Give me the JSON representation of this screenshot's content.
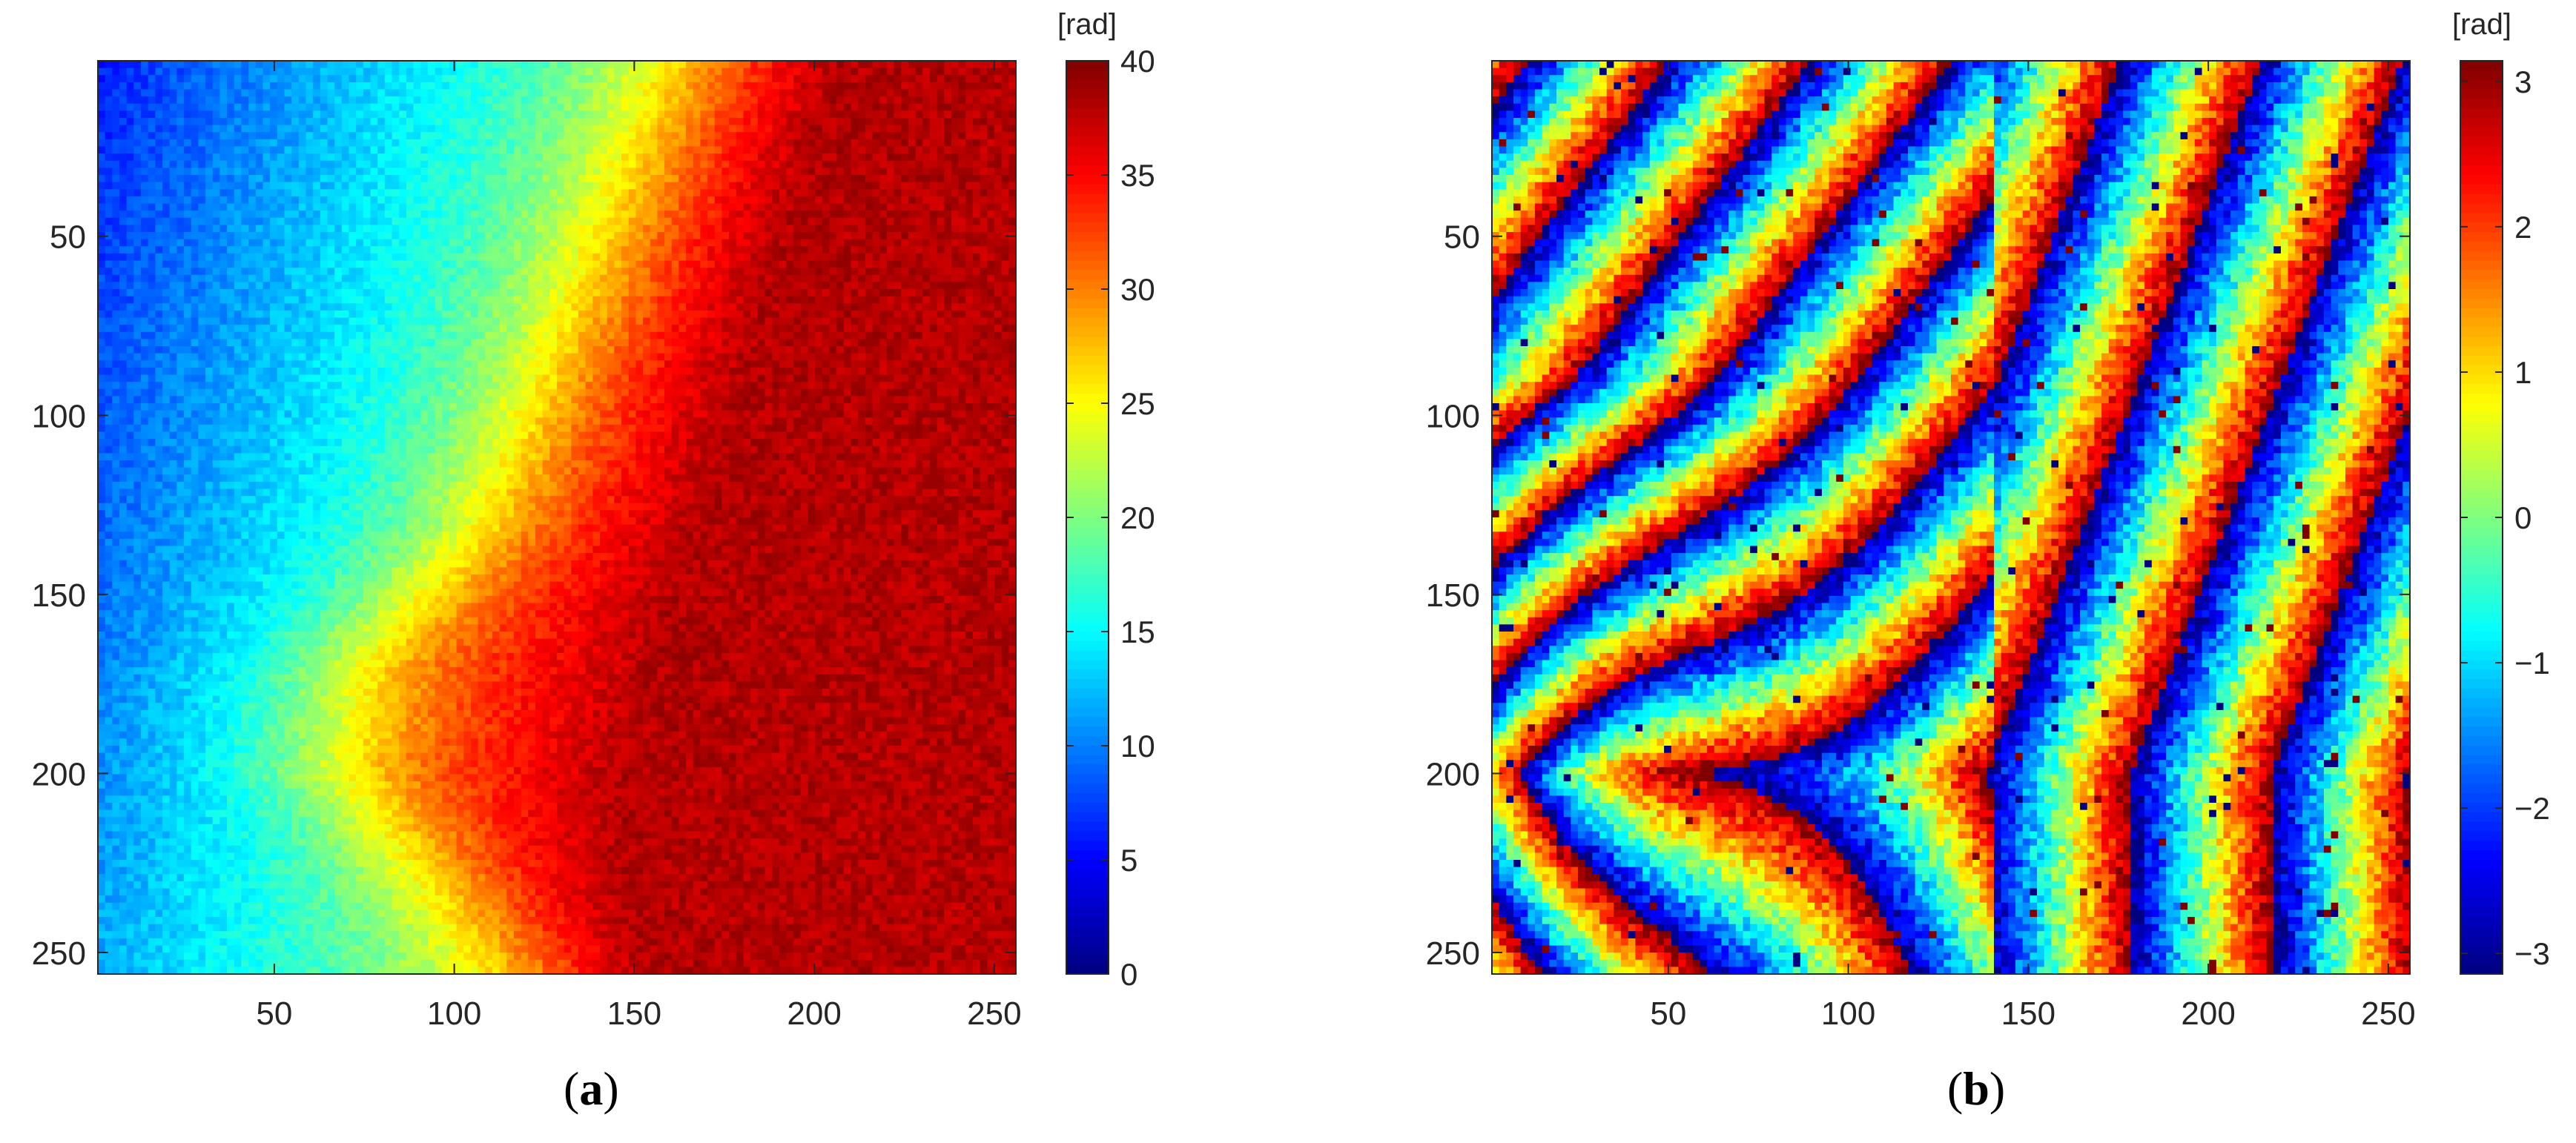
{
  "chart_data": [
    {
      "type": "heatmap",
      "panel_label": "a",
      "xlim": [
        1,
        256
      ],
      "ylim": [
        1,
        256
      ],
      "y_reversed": true,
      "x_ticks": [
        "50",
        "100",
        "150",
        "200",
        "250"
      ],
      "y_ticks": [
        "50",
        "100",
        "150",
        "200",
        "250"
      ],
      "colorbar": {
        "unit": "[rad]",
        "range": [
          0,
          40
        ],
        "ticks": [
          "0",
          "5",
          "10",
          "15",
          "20",
          "25",
          "30",
          "35",
          "40"
        ],
        "colormap": "jet"
      },
      "field": {
        "kind": "unwrapped-phase",
        "approx_min": 5,
        "approx_max": 37,
        "trend": "increases from upper-left to right"
      }
    },
    {
      "type": "heatmap",
      "panel_label": "b",
      "xlim": [
        1,
        256
      ],
      "ylim": [
        1,
        256
      ],
      "y_reversed": true,
      "x_ticks": [
        "50",
        "100",
        "150",
        "200",
        "250"
      ],
      "y_ticks": [
        "50",
        "100",
        "150",
        "200",
        "250"
      ],
      "colorbar": {
        "unit": "[rad]",
        "range": [
          -3.1416,
          3.1416
        ],
        "ticks": [
          "−3",
          "−2",
          "−1",
          "0",
          "1",
          "2",
          "3"
        ],
        "colormap": "jet"
      },
      "field": {
        "kind": "wrapped-phase",
        "approx_min": -3.1416,
        "approx_max": 3.1416,
        "trend": "diagonal fringes with V-shaped bends near x=20, y=200"
      }
    }
  ],
  "captions": [
    {
      "open": "(",
      "label": "a",
      "close": ")"
    },
    {
      "open": "(",
      "label": "b",
      "close": ")"
    }
  ]
}
